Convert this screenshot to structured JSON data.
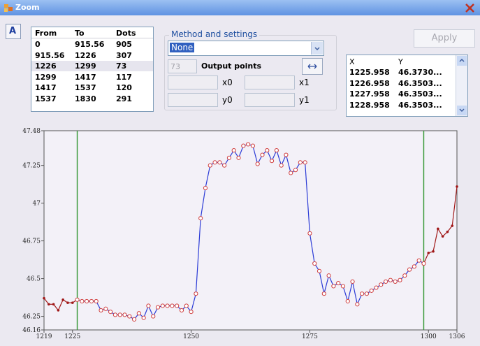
{
  "window": {
    "title": "Zoom"
  },
  "font_button": "A",
  "ranges_table": {
    "headers": [
      "From",
      "To",
      "Dots"
    ],
    "rows": [
      [
        "0",
        "915.56",
        "905"
      ],
      [
        "915.56",
        "1226",
        "307"
      ],
      [
        "1226",
        "1299",
        "73"
      ],
      [
        "1299",
        "1417",
        "117"
      ],
      [
        "1417",
        "1537",
        "120"
      ],
      [
        "1537",
        "1830",
        "291"
      ]
    ],
    "selected_row": 2
  },
  "method": {
    "legend": "Method and settings",
    "selected": "None",
    "output_points": "73",
    "output_points_label": "Output points",
    "x0_label": "x0",
    "x1_label": "x1",
    "y0_label": "y0",
    "y1_label": "y1"
  },
  "apply": "Apply",
  "points_table": {
    "headers": [
      "X",
      "Y"
    ],
    "rows": [
      [
        "1225.958",
        "46.3730..."
      ],
      [
        "1226.958",
        "46.3503..."
      ],
      [
        "1227.958",
        "46.3503..."
      ],
      [
        "1228.958",
        "46.3503..."
      ]
    ]
  },
  "chart_data": {
    "type": "line",
    "x": [
      1219,
      1220,
      1221,
      1222,
      1223,
      1224,
      1225,
      1226,
      1227,
      1228,
      1229,
      1230,
      1231,
      1232,
      1233,
      1234,
      1235,
      1236,
      1237,
      1238,
      1239,
      1240,
      1241,
      1242,
      1243,
      1244,
      1245,
      1246,
      1247,
      1248,
      1249,
      1250,
      1251,
      1252,
      1253,
      1254,
      1255,
      1256,
      1257,
      1258,
      1259,
      1260,
      1261,
      1262,
      1263,
      1264,
      1265,
      1266,
      1267,
      1268,
      1269,
      1270,
      1271,
      1272,
      1273,
      1274,
      1275,
      1276,
      1277,
      1278,
      1279,
      1280,
      1281,
      1282,
      1283,
      1284,
      1285,
      1286,
      1287,
      1288,
      1289,
      1290,
      1291,
      1292,
      1293,
      1294,
      1295,
      1296,
      1297,
      1298,
      1299,
      1300,
      1301,
      1302,
      1303,
      1304,
      1305,
      1306
    ],
    "values": [
      46.37,
      46.33,
      46.33,
      46.29,
      46.36,
      46.34,
      46.34,
      46.36,
      46.35,
      46.35,
      46.35,
      46.35,
      46.29,
      46.3,
      46.28,
      46.26,
      46.26,
      46.26,
      46.25,
      46.23,
      46.27,
      46.24,
      46.32,
      46.25,
      46.31,
      46.32,
      46.32,
      46.32,
      46.32,
      46.29,
      46.32,
      46.28,
      46.4,
      46.9,
      47.1,
      47.25,
      47.27,
      47.27,
      47.25,
      47.3,
      47.35,
      47.3,
      47.38,
      47.39,
      47.38,
      47.26,
      47.32,
      47.35,
      47.28,
      47.35,
      47.25,
      47.32,
      47.2,
      47.22,
      47.27,
      47.27,
      46.8,
      46.6,
      46.55,
      46.4,
      46.52,
      46.45,
      46.47,
      46.45,
      46.35,
      46.48,
      46.33,
      46.4,
      46.4,
      46.42,
      46.44,
      46.46,
      46.48,
      46.49,
      46.48,
      46.49,
      46.52,
      46.56,
      46.58,
      46.62,
      46.6,
      46.67,
      46.68,
      46.83,
      46.78,
      46.81,
      46.85,
      47.11
    ],
    "range": [
      1226,
      1299
    ],
    "color": "#2b3bd6",
    "outside_color": "#a01818",
    "marker_color": "#d04040",
    "range_color": "#3a9a3a",
    "xlim": [
      1219,
      1306
    ],
    "xticks": [
      1219,
      1225,
      1250,
      1275,
      1300,
      1306
    ],
    "ylim": [
      46.16,
      47.48
    ],
    "yticks": [
      46.16,
      46.25,
      46.5,
      46.75,
      47,
      47.25,
      47.48
    ]
  }
}
